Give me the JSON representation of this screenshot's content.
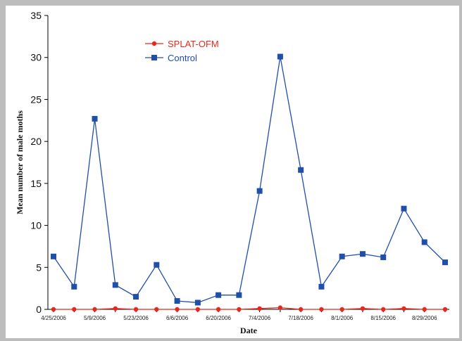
{
  "chart_data": {
    "type": "line",
    "xlabel": "Date",
    "ylabel": "Mean number of male moths",
    "ylim": [
      0,
      35
    ],
    "yticks": [
      0,
      5,
      10,
      15,
      20,
      25,
      30,
      35
    ],
    "xtick_labels": [
      "4/25/2006",
      "5/9/2006",
      "5/23/2006",
      "6/6/2006",
      "6/20/2006",
      "7/4/2006",
      "7/18/2006",
      "8/1/2006",
      "8/15/2006",
      "8/29/2006"
    ],
    "x": [
      "4/25/2006",
      "5/2/2006",
      "5/9/2006",
      "5/16/2006",
      "5/23/2006",
      "5/30/2006",
      "6/6/2006",
      "6/13/2006",
      "6/20/2006",
      "6/27/2006",
      "7/4/2006",
      "7/11/2006",
      "7/18/2006",
      "7/25/2006",
      "8/1/2006",
      "8/8/2006",
      "8/15/2006",
      "8/22/2006",
      "8/29/2006",
      "9/5/2006"
    ],
    "series": [
      {
        "name": "SPLAT-OFM",
        "color": "#e8281e",
        "marker": "circle",
        "values": [
          0,
          0,
          0,
          0.1,
          0,
          0,
          0,
          0,
          0,
          0,
          0.1,
          0.2,
          0,
          0,
          0,
          0.1,
          0,
          0.1,
          0,
          0
        ]
      },
      {
        "name": "Control",
        "color": "#1f4fa8",
        "marker": "square",
        "values": [
          6.3,
          2.7,
          22.7,
          2.9,
          1.5,
          5.3,
          1.0,
          0.8,
          1.7,
          1.7,
          14.1,
          30.1,
          16.6,
          2.7,
          6.3,
          6.6,
          6.2,
          12.0,
          8.0,
          5.6
        ]
      }
    ],
    "legend_position": "top-left",
    "grid": false
  }
}
